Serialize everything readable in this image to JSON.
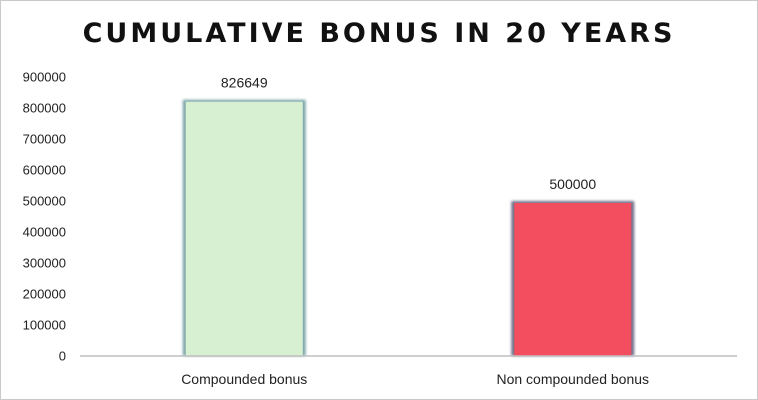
{
  "chart_data": {
    "type": "bar",
    "title": "CUMULATIVE BONUS IN 20 YEARS",
    "xlabel": "",
    "ylabel": "",
    "categories": [
      "Compounded bonus",
      "Non compounded bonus"
    ],
    "values": [
      826649,
      500000
    ],
    "data_labels": [
      "826649",
      "500000"
    ],
    "ylim": [
      0,
      900000
    ],
    "yticks": [
      "0",
      "100000",
      "200000",
      "300000",
      "400000",
      "500000",
      "600000",
      "700000",
      "800000",
      "900000"
    ],
    "grid": false,
    "legend": "none",
    "colors": {
      "bar_fills": [
        "#d8f0d2",
        "#f24e60"
      ],
      "bar_borders": [
        "#6a9a9c",
        "#5c5a78"
      ],
      "axis": "#bfbfbf"
    }
  }
}
